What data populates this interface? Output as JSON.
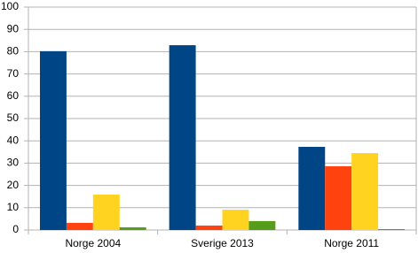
{
  "chart_data": {
    "type": "bar",
    "categories": [
      "Norge 2004",
      "Sverige 2013",
      "Norge 2011"
    ],
    "series": [
      {
        "color": "#004586",
        "values": [
          80.2,
          82.9,
          37.3
        ]
      },
      {
        "color": "#ff420e",
        "values": [
          3.2,
          2,
          28.6
        ]
      },
      {
        "color": "#ffd320",
        "values": [
          15.9,
          9.1,
          34.5
        ]
      },
      {
        "color": "#579d1c",
        "values": [
          1.2,
          4,
          0.4
        ]
      }
    ],
    "ylim": [
      0,
      100
    ],
    "yticks": [
      0,
      10,
      20,
      30,
      40,
      50,
      60,
      70,
      80,
      90,
      100
    ],
    "grid": true
  }
}
